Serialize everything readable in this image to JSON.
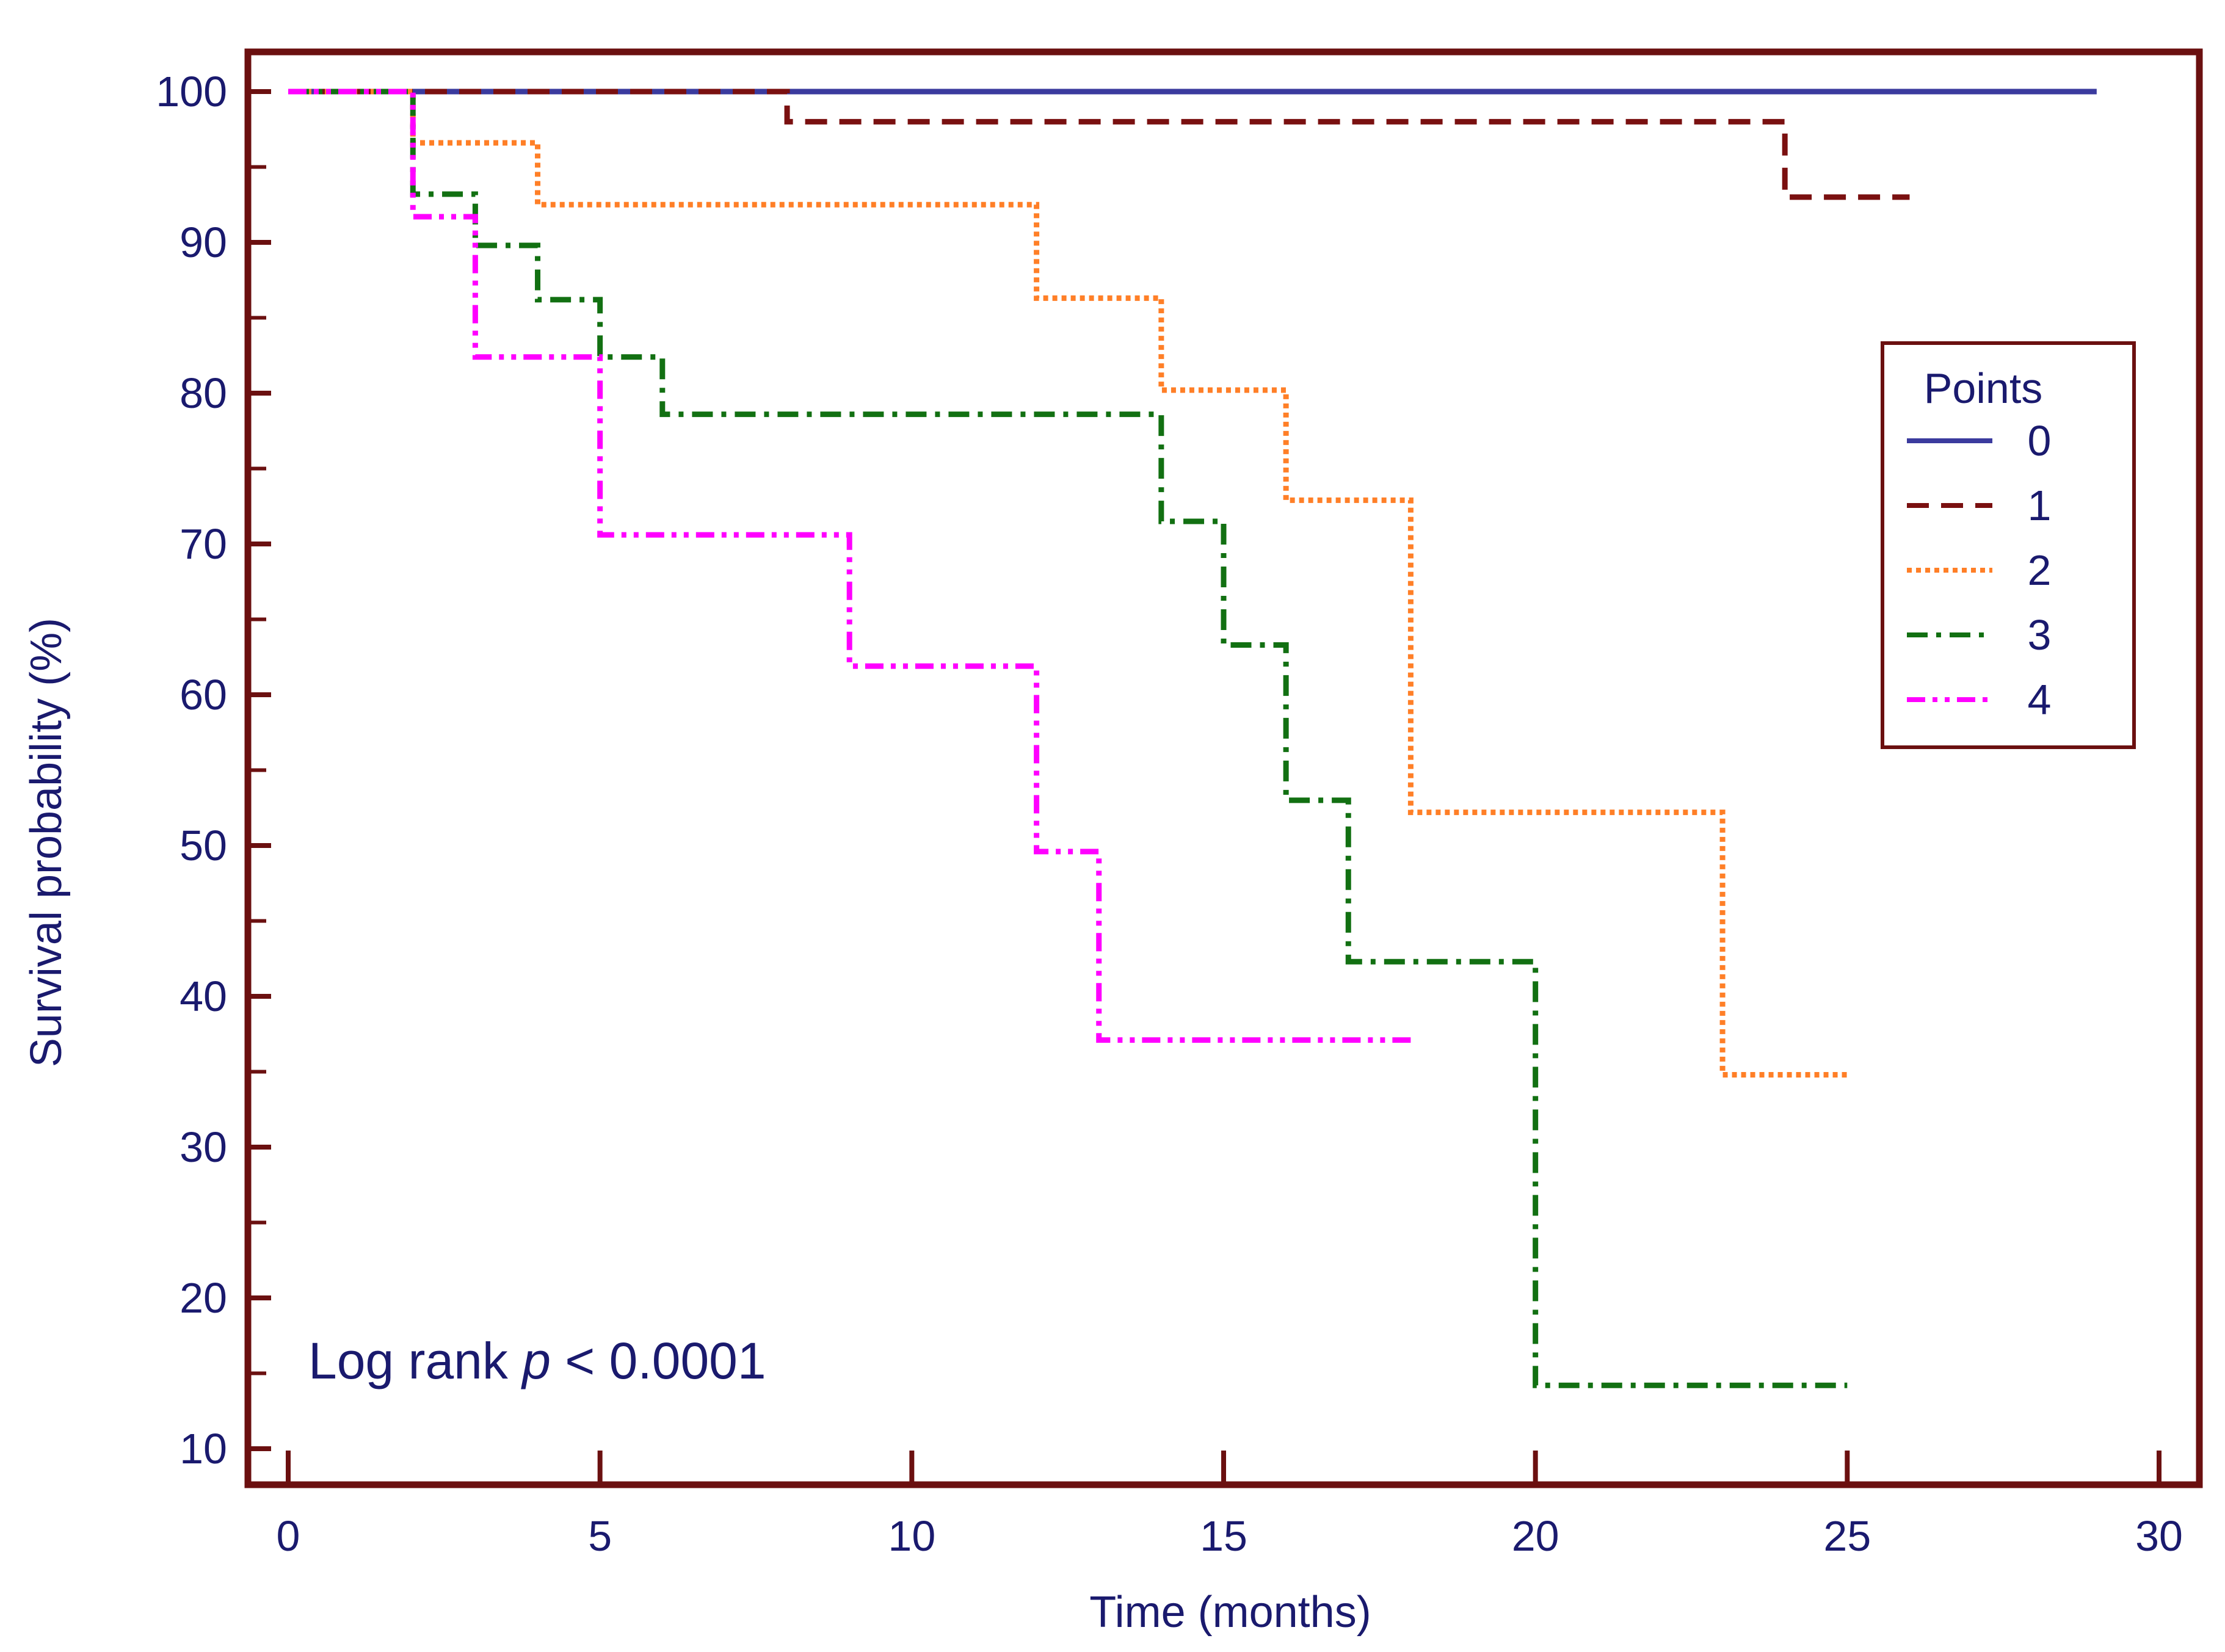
{
  "chart_data": {
    "type": "line",
    "step": true,
    "xlabel": "Time (months)",
    "ylabel": "Survival probability (%)",
    "xlim": [
      0,
      30
    ],
    "ylim": [
      10,
      100
    ],
    "x_ticks": [
      0,
      5,
      10,
      15,
      20,
      25,
      30
    ],
    "y_ticks": [
      10,
      20,
      30,
      40,
      50,
      60,
      70,
      80,
      90,
      100
    ],
    "grid": false,
    "legend": {
      "title": "Points",
      "position": "right"
    },
    "annotation": {
      "prefix": "Log rank ",
      "italic": "p",
      "suffix": " < 0.0001"
    },
    "series": [
      {
        "name": "0",
        "color": "#3b3b9e",
        "style": "solid",
        "steps": [
          [
            0,
            100
          ],
          [
            29,
            100
          ]
        ]
      },
      {
        "name": "1",
        "color": "#7a1010",
        "style": "dashed",
        "steps": [
          [
            0,
            100
          ],
          [
            8,
            98
          ],
          [
            24,
            93
          ],
          [
            26,
            93
          ]
        ]
      },
      {
        "name": "2",
        "color": "#ff7f27",
        "style": "dotted",
        "steps": [
          [
            0,
            100
          ],
          [
            2,
            96.6
          ],
          [
            4,
            92.5
          ],
          [
            12,
            86.3
          ],
          [
            14,
            80.2
          ],
          [
            16,
            72.9
          ],
          [
            18,
            52.2
          ],
          [
            23,
            34.8
          ],
          [
            25,
            34.8
          ]
        ]
      },
      {
        "name": "3",
        "color": "#127012",
        "style": "dashdot",
        "steps": [
          [
            0,
            100
          ],
          [
            2,
            93.2
          ],
          [
            3,
            89.8
          ],
          [
            4,
            86.2
          ],
          [
            5,
            82.4
          ],
          [
            6,
            78.6
          ],
          [
            14,
            71.5
          ],
          [
            15,
            63.3
          ],
          [
            16,
            53
          ],
          [
            17,
            42.3
          ],
          [
            20,
            14.2
          ],
          [
            25,
            14.2
          ]
        ]
      },
      {
        "name": "4",
        "color": "#ff00ff",
        "style": "dashdotdot",
        "steps": [
          [
            0,
            100
          ],
          [
            2,
            91.7
          ],
          [
            3,
            82.4
          ],
          [
            5,
            70.6
          ],
          [
            9,
            61.9
          ],
          [
            12,
            49.6
          ],
          [
            13,
            37.1
          ],
          [
            18,
            37.1
          ]
        ]
      }
    ]
  }
}
